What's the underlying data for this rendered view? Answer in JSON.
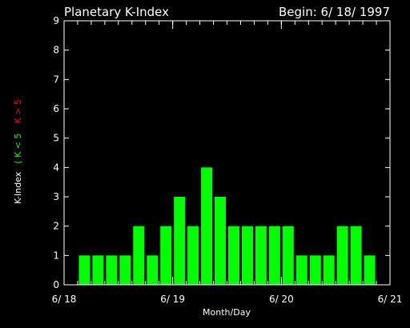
{
  "chart_data": {
    "type": "bar",
    "title": "Planetary K-Index",
    "subtitle": "Begin: 6/ 18/ 1997",
    "xlabel": "Month/Day",
    "ylabel": "K-Index",
    "legend": {
      "low_text": "( K < 5",
      "high_text": "K > 5",
      "low_color": "#00ff00",
      "high_color": "#ff0000"
    },
    "bar_color": "#00ff00",
    "axis_color": "#ffffff",
    "background": "#000000",
    "ylim": [
      0,
      9
    ],
    "y_ticks": [
      "0",
      "1",
      "2",
      "3",
      "4",
      "5",
      "6",
      "7",
      "8",
      "9"
    ],
    "x_range_days": [
      0,
      3
    ],
    "x_ticks": [
      {
        "day": 0,
        "label": "6/ 18"
      },
      {
        "day": 1,
        "label": "6/ 19"
      },
      {
        "day": 2,
        "label": "6/ 20"
      },
      {
        "day": 3,
        "label": "6/ 21"
      }
    ],
    "bin_hours": 3,
    "values": [
      1,
      1,
      1,
      1,
      2,
      1,
      2,
      3,
      2,
      4,
      3,
      2,
      2,
      2,
      2,
      2,
      1,
      1,
      1,
      2,
      2,
      1
    ]
  }
}
